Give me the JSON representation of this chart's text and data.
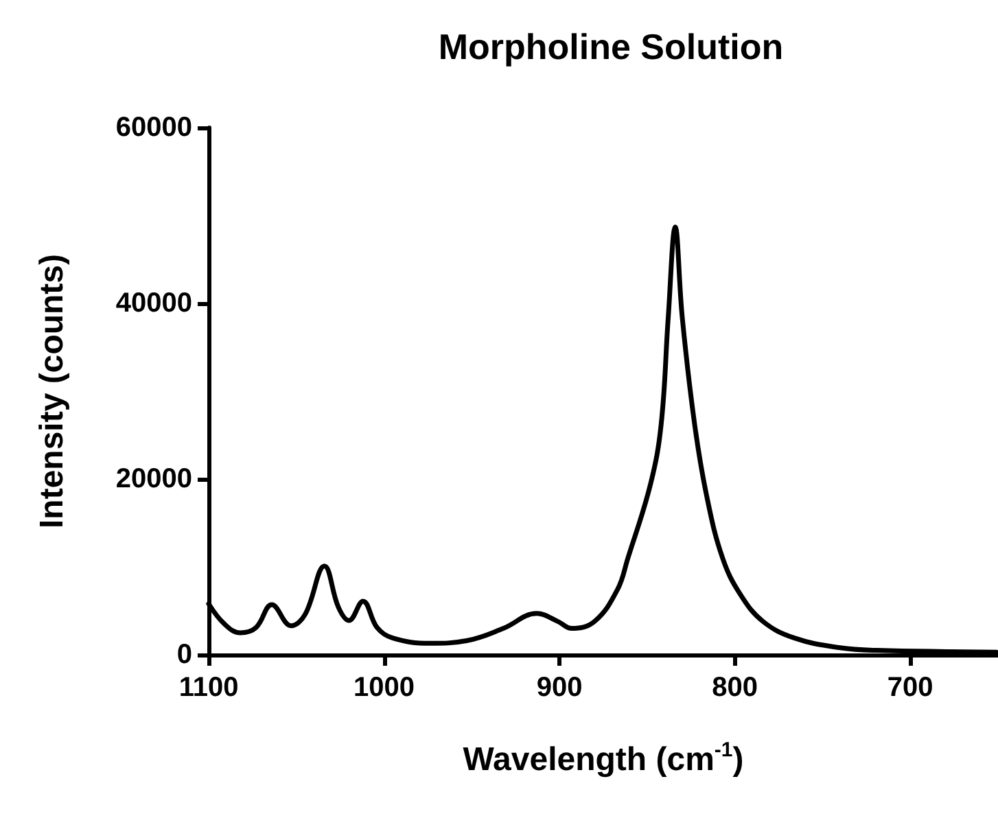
{
  "chart_data": {
    "type": "line",
    "title": "Morpholine Solution",
    "xlabel": "Wavelength (cm$^{-1}$)",
    "ylabel": "Intensity (counts)",
    "xlim": [
      1100,
      650
    ],
    "xticks": [
      1100,
      1000,
      900,
      800,
      700
    ],
    "ylim": [
      0,
      60000
    ],
    "yticks": [
      0,
      20000,
      40000,
      60000
    ],
    "grid": false,
    "marker": "none",
    "line_style": "solid",
    "series": [
      {
        "color": "#000000",
        "x": [
          1100,
          1091,
          1082,
          1073,
          1064,
          1053,
          1045,
          1034,
          1026,
          1020,
          1012,
          1004,
          995,
          974,
          953,
          932,
          913,
          901,
          893,
          880,
          867,
          861,
          848,
          842,
          838,
          834,
          830,
          823,
          816,
          807,
          797,
          784,
          766,
          740,
          719,
          651
        ],
        "values": [
          5800,
          3500,
          2500,
          3100,
          5700,
          3300,
          4600,
          10100,
          5400,
          3900,
          6100,
          3100,
          1900,
          1300,
          1600,
          3000,
          4700,
          3800,
          3000,
          3800,
          7400,
          11000,
          19500,
          26300,
          38400,
          48700,
          38400,
          26300,
          18000,
          11000,
          6900,
          3800,
          1900,
          800,
          500,
          300
        ]
      }
    ]
  }
}
